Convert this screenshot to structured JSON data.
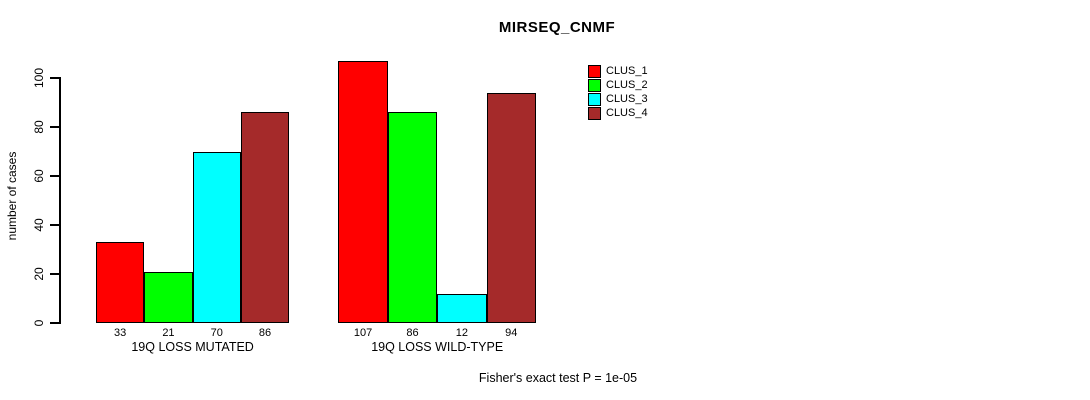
{
  "title": "MIRSEQ_CNMF",
  "footnote": "Fisher's exact test P = 1e-05",
  "y_axis": {
    "label": "number of cases",
    "ticks": [
      0,
      20,
      40,
      60,
      80,
      100
    ]
  },
  "legend": {
    "items": [
      {
        "label": "CLUS_1",
        "color": "#FF0000"
      },
      {
        "label": "CLUS_2",
        "color": "#00FF00"
      },
      {
        "label": "CLUS_3",
        "color": "#00FFFF"
      },
      {
        "label": "CLUS_4",
        "color": "#A52A2A"
      }
    ]
  },
  "chart_data": {
    "type": "bar",
    "title": "MIRSEQ_CNMF",
    "xlabel": "",
    "ylabel": "number of cases",
    "ylim": [
      0,
      110
    ],
    "yticks": [
      0,
      20,
      40,
      60,
      80,
      100
    ],
    "grid": false,
    "legend_position": "right-top",
    "show_value_labels": true,
    "categories": [
      "19Q LOSS MUTATED",
      "19Q LOSS WILD-TYPE"
    ],
    "series": [
      {
        "name": "CLUS_1",
        "color": "#FF0000",
        "values": [
          33,
          107
        ]
      },
      {
        "name": "CLUS_2",
        "color": "#00FF00",
        "values": [
          21,
          86
        ]
      },
      {
        "name": "CLUS_3",
        "color": "#00FFFF",
        "values": [
          70,
          12
        ]
      },
      {
        "name": "CLUS_4",
        "color": "#A52A2A",
        "values": [
          86,
          94
        ]
      }
    ],
    "annotation": "Fisher's exact test P = 1e-05"
  }
}
